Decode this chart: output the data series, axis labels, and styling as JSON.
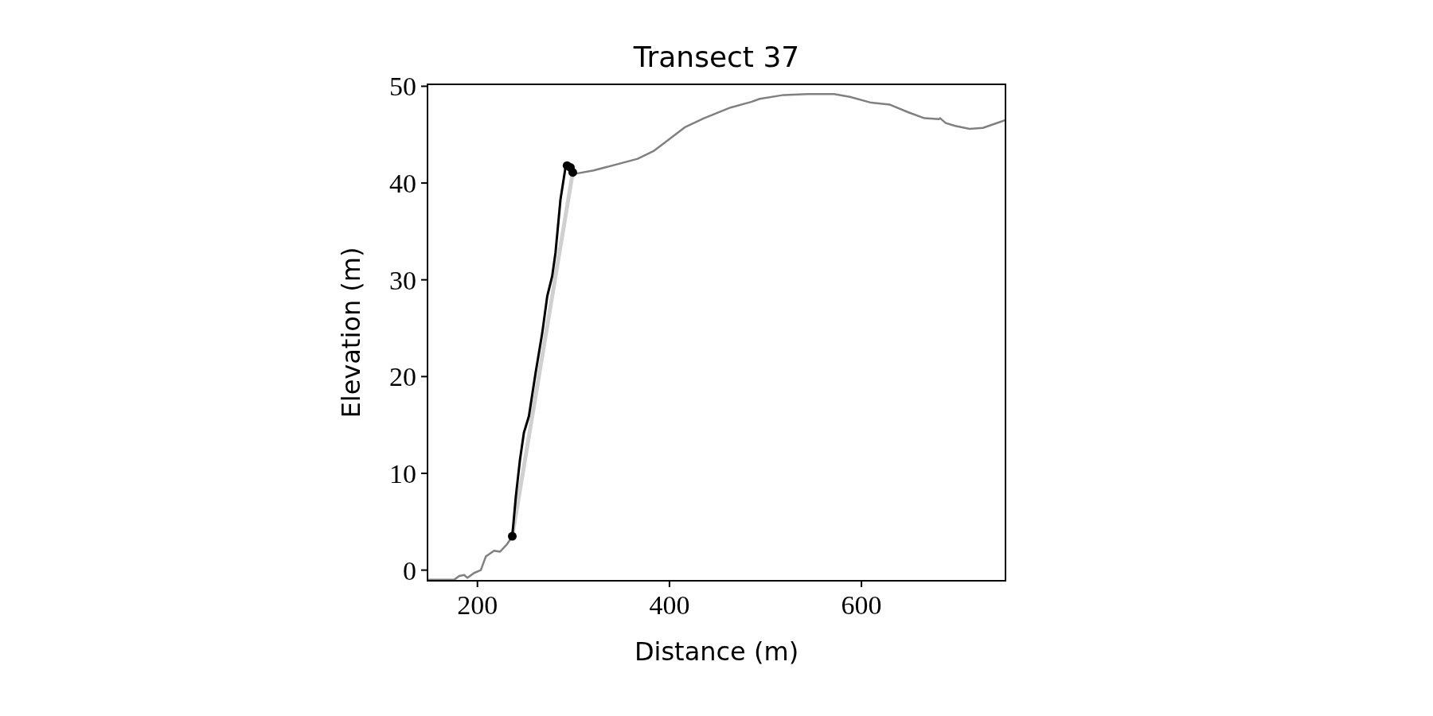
{
  "chart_data": {
    "type": "line",
    "title": "Transect 37",
    "xlabel": "Distance (m)",
    "ylabel": "Elevation (m)",
    "xlim": [
      148,
      750
    ],
    "ylim": [
      -1.1,
      50.2
    ],
    "xticks": [
      200,
      400,
      600
    ],
    "yticks": [
      0,
      10,
      20,
      30,
      40,
      50
    ],
    "grid": false,
    "series": [
      {
        "color": "#d0d0d0",
        "x": [
          236.3,
          299.3
        ],
        "values": [
          3.5,
          41.1
        ]
      },
      {
        "color": "#808080",
        "x": [
          148,
          158.5,
          175.8,
          181,
          186.2,
          189.6,
          196.5,
          203.5,
          208.7,
          217.3,
          223.5,
          231,
          236.3,
          null,
          298.6,
          321,
          366.8,
          383.4,
          416.6,
          436,
          463.6,
          485.7,
          494,
          518.9,
          543.8,
          571.5,
          588,
          610.2,
          629.7,
          649,
          665.6,
          680.7,
          682,
          687.7,
          697.6,
          712.6,
          726.5,
          750
        ],
        "values": [
          -1,
          -1,
          -1,
          -0.6,
          -0.5,
          -0.8,
          -0.3,
          0,
          1.4,
          2,
          1.9,
          2.7,
          3.5,
          null,
          40.9,
          41.3,
          42.5,
          43.3,
          45.8,
          46.7,
          47.8,
          48.4,
          48.7,
          49.1,
          49.2,
          49.2,
          48.9,
          48.3,
          48.1,
          47.3,
          46.7,
          46.6,
          46.7,
          46.2,
          45.9,
          45.6,
          45.7,
          46.5
        ]
      },
      {
        "color": "#000000",
        "x": [
          236.3,
          240,
          244.3,
          248.4,
          253.6,
          260.6,
          267.5,
          272.7,
          277.9,
          281.3,
          286.5,
          291.7,
          293.4
        ],
        "values": [
          3.5,
          7.6,
          11.4,
          14.2,
          15.9,
          20.4,
          24.5,
          28.3,
          30.4,
          32.8,
          38.3,
          41.6,
          41.8
        ]
      },
      {
        "type": "scatter",
        "color": "#000000",
        "marker": "circle",
        "x": [
          236.3,
          293.4,
          296.9,
          299.3
        ],
        "values": [
          3.5,
          41.8,
          41.6,
          41.1
        ]
      }
    ]
  }
}
